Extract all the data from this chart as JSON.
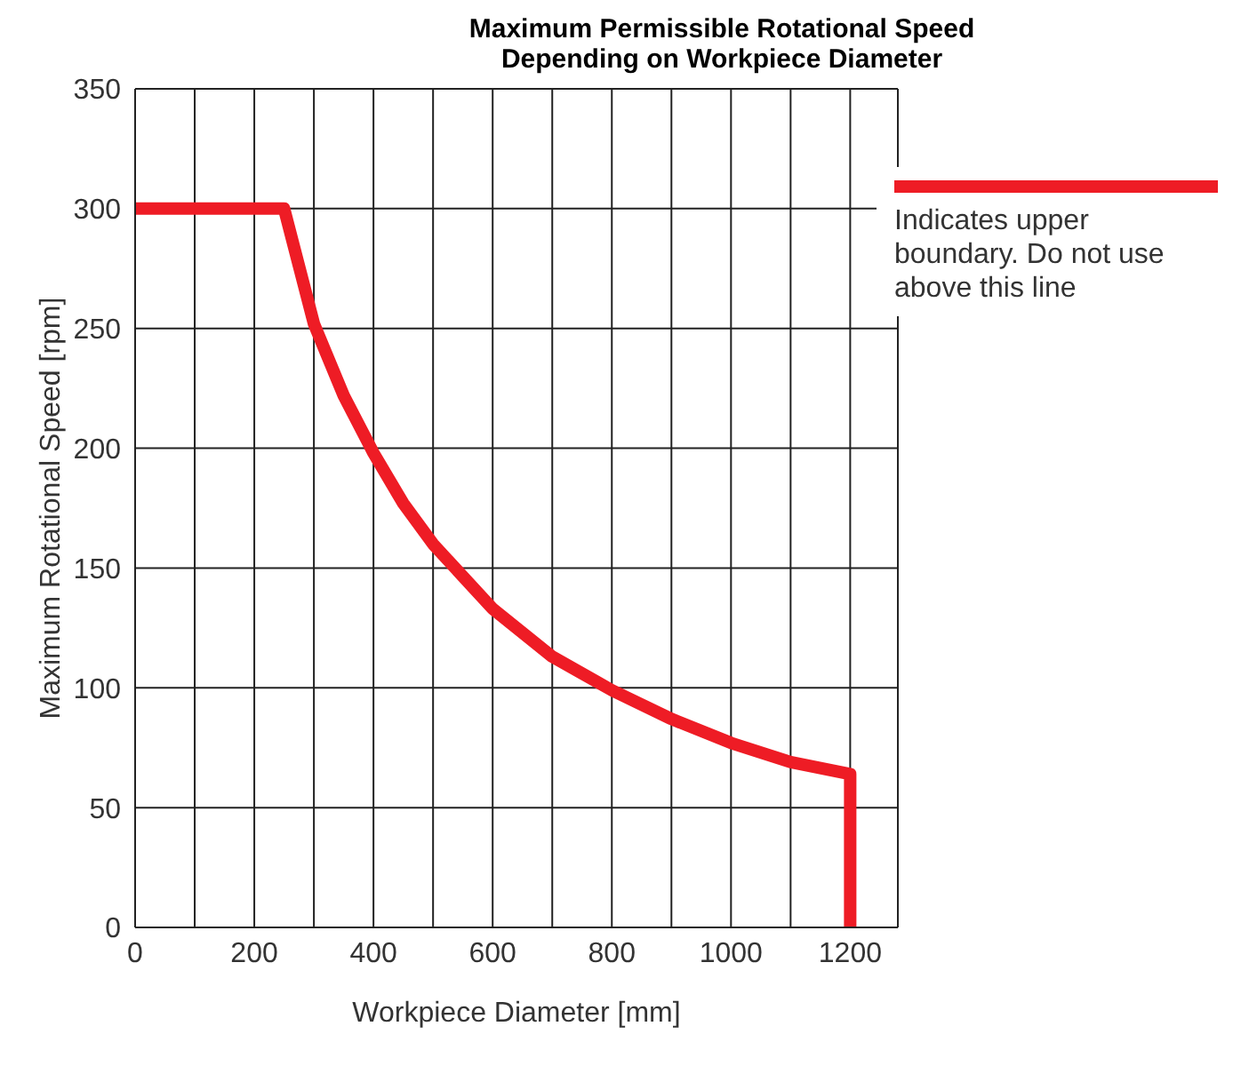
{
  "chart_data": {
    "type": "line",
    "title": "Maximum Permissible Rotational Speed Depending on Workpiece Diameter",
    "xlabel": "Workpiece Diameter [mm]",
    "ylabel": "Maximum Rotational Speed [rpm]",
    "series": [
      {
        "name": "Indicates upper boundary. Do not use above this line",
        "color": "#ee1c25",
        "x": [
          0,
          250,
          300,
          350,
          400,
          450,
          500,
          600,
          700,
          800,
          900,
          1000,
          1100,
          1200,
          1200
        ],
        "values": [
          300,
          300,
          252,
          222,
          198,
          177,
          160,
          133,
          113,
          99,
          87,
          77,
          69,
          64,
          0
        ]
      }
    ],
    "xlim": [
      0,
      1280
    ],
    "xticks": [
      0,
      {
        "value": 100,
        "label": null
      },
      200,
      {
        "value": 300,
        "label": null
      },
      400,
      {
        "value": 500,
        "label": null
      },
      600,
      {
        "value": 700,
        "label": null
      },
      800,
      {
        "value": 900,
        "label": null
      },
      1000,
      {
        "value": 1100,
        "label": null
      },
      1200
    ],
    "ylim": [
      0,
      350
    ],
    "yticks": [
      0,
      50,
      100,
      150,
      200,
      250,
      300,
      350
    ],
    "grid": true,
    "legend": "top right",
    "marker": "none",
    "line_style": "solid"
  }
}
